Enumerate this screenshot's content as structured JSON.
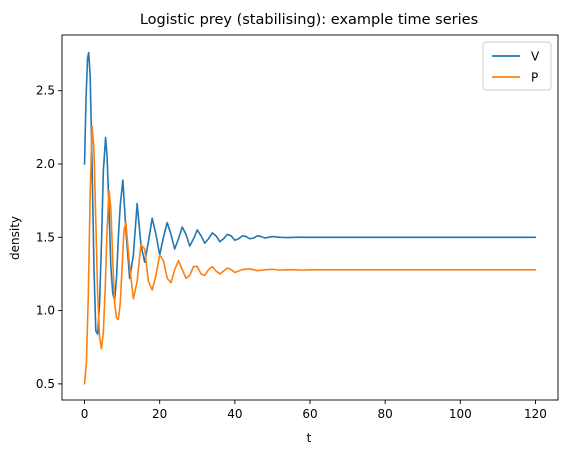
{
  "chart_data": {
    "type": "line",
    "title": "Logistic prey (stabilising): example time series",
    "xlabel": "t",
    "ylabel": "density",
    "xlim": [
      -6,
      126
    ],
    "ylim": [
      0.39,
      2.88
    ],
    "xticks": [
      0,
      20,
      40,
      60,
      80,
      100,
      120
    ],
    "xtick_labels": [
      "0",
      "20",
      "40",
      "60",
      "80",
      "100",
      "120"
    ],
    "yticks": [
      0.5,
      1.0,
      1.5,
      2.0,
      2.5
    ],
    "ytick_labels": [
      "0.5",
      "1.0",
      "1.5",
      "2.0",
      "2.5"
    ],
    "grid": false,
    "legend_position": "top-right",
    "series": [
      {
        "name": "V",
        "color": "#1f77b4",
        "x": [
          0,
          0.4,
          0.8,
          1.1,
          1.5,
          2,
          2.5,
          3,
          3.5,
          4,
          4.5,
          5,
          5.6,
          6,
          6.5,
          7,
          7.5,
          8,
          8.5,
          9,
          9.5,
          10.2,
          11,
          12,
          13,
          14,
          15,
          16,
          17,
          18,
          19,
          20,
          21,
          22,
          23,
          24,
          25,
          26,
          27,
          28,
          29,
          30,
          31,
          32,
          33,
          34,
          35,
          36,
          37,
          38,
          39,
          40,
          41,
          42,
          43,
          44,
          45,
          46,
          47,
          48,
          49,
          50,
          52,
          54,
          56,
          58,
          60,
          65,
          70,
          80,
          90,
          100,
          110,
          120
        ],
        "y": [
          2.0,
          2.45,
          2.72,
          2.76,
          2.6,
          2.0,
          1.3,
          0.86,
          0.84,
          1.05,
          1.45,
          1.95,
          2.18,
          2.05,
          1.7,
          1.3,
          1.12,
          1.07,
          1.22,
          1.5,
          1.72,
          1.89,
          1.55,
          1.22,
          1.38,
          1.73,
          1.45,
          1.33,
          1.47,
          1.63,
          1.52,
          1.38,
          1.5,
          1.6,
          1.52,
          1.42,
          1.49,
          1.57,
          1.52,
          1.44,
          1.49,
          1.55,
          1.51,
          1.46,
          1.49,
          1.53,
          1.51,
          1.47,
          1.49,
          1.52,
          1.51,
          1.48,
          1.49,
          1.51,
          1.505,
          1.49,
          1.495,
          1.51,
          1.505,
          1.495,
          1.5,
          1.505,
          1.5,
          1.498,
          1.5,
          1.501,
          1.5,
          1.5,
          1.5,
          1.5,
          1.5,
          1.5,
          1.5,
          1.5
        ]
      },
      {
        "name": "P",
        "color": "#ff7f0e",
        "x": [
          0,
          0.5,
          1,
          1.5,
          2,
          2.5,
          3,
          3.5,
          4,
          4.5,
          5,
          5.5,
          6,
          6.5,
          7,
          7.5,
          8,
          8.5,
          9,
          9.5,
          10,
          10.5,
          11,
          12,
          13,
          14,
          15,
          16,
          17,
          18,
          19,
          20,
          21,
          22,
          23,
          24,
          25,
          26,
          27,
          28,
          29,
          30,
          31,
          32,
          33,
          34,
          35,
          36,
          37,
          38,
          39,
          40,
          42,
          44,
          46,
          48,
          50,
          52,
          54,
          56,
          58,
          60,
          65,
          70,
          80,
          90,
          100,
          110,
          120
        ],
        "y": [
          0.5,
          0.65,
          1.1,
          1.8,
          2.26,
          2.1,
          1.6,
          1.1,
          0.82,
          0.74,
          0.85,
          1.15,
          1.55,
          1.82,
          1.7,
          1.35,
          1.05,
          0.95,
          0.94,
          1.05,
          1.3,
          1.55,
          1.6,
          1.3,
          1.08,
          1.2,
          1.45,
          1.42,
          1.2,
          1.14,
          1.24,
          1.38,
          1.34,
          1.22,
          1.19,
          1.28,
          1.34,
          1.28,
          1.22,
          1.24,
          1.3,
          1.3,
          1.25,
          1.24,
          1.28,
          1.3,
          1.27,
          1.25,
          1.27,
          1.29,
          1.28,
          1.26,
          1.28,
          1.285,
          1.272,
          1.278,
          1.282,
          1.276,
          1.279,
          1.278,
          1.276,
          1.278,
          1.278,
          1.278,
          1.278,
          1.278,
          1.278,
          1.278,
          1.278
        ]
      }
    ]
  }
}
